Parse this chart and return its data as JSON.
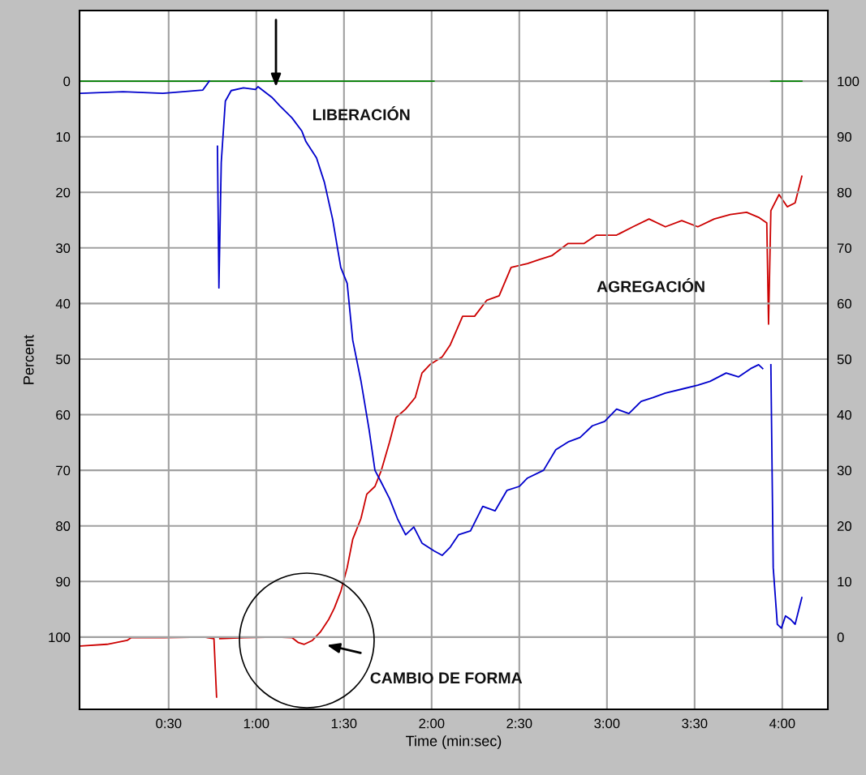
{
  "chart_data": {
    "type": "line",
    "xlabel": "Time (min:sec)",
    "ylabel": "Percent",
    "xlim": [
      -0.5,
      255.6
    ],
    "xticks": [
      {
        "value": 30,
        "label": "0:30"
      },
      {
        "value": 60,
        "label": "1:00"
      },
      {
        "value": 90,
        "label": "1:30"
      },
      {
        "value": 120,
        "label": "2:00"
      },
      {
        "value": 150,
        "label": "2:30"
      },
      {
        "value": 180,
        "label": "3:00"
      },
      {
        "value": 210,
        "label": "3:30"
      },
      {
        "value": 240,
        "label": "4:00"
      }
    ],
    "ylim": [
      113,
      -12.7
    ],
    "yticks": [
      0,
      10,
      20,
      30,
      40,
      50,
      60,
      70,
      80,
      90,
      100
    ],
    "y2lim": [
      -13,
      112.7
    ],
    "y2ticks": [
      0,
      10,
      20,
      30,
      40,
      50,
      60,
      70,
      80,
      90,
      100
    ],
    "grid": true,
    "series": [
      {
        "color": "#008000",
        "x": [
          0,
          120.8,
          121,
          236.1,
          246.7
        ],
        "values": [
          0,
          0,
          null,
          0,
          0
        ]
      },
      {
        "color": "#0000cc",
        "x": [
          0,
          14.4,
          28,
          41.7,
          43.9,
          45,
          46.1,
          46.7,
          47.2,
          48,
          49.4,
          51.4,
          55.6,
          59.7,
          60.6,
          65.3,
          68,
          72.2,
          75.6,
          77,
          80.6,
          83.3,
          86.1,
          88.9,
          91.1,
          93,
          95.8,
          98.6,
          100.6,
          102.8,
          105.6,
          108.3,
          111.1,
          113.9,
          116.7,
          120.8,
          123.6,
          126.4,
          129.2,
          133.3,
          137.5,
          141.7,
          145.8,
          150,
          152.8,
          158.3,
          162.5,
          166.7,
          170.8,
          175,
          179.2,
          183.3,
          187.5,
          191.7,
          195.8,
          200,
          205.6,
          211.1,
          215.3,
          220.8,
          225,
          229.2,
          231.9,
          233.3,
          233.9,
          235.6,
          236.1,
          236.9,
          238.3,
          239.7,
          241.1,
          243,
          244.4,
          246.7
        ],
        "values": [
          2.2,
          1.9,
          2.2,
          1.6,
          0,
          null,
          null,
          11.7,
          37.2,
          14.6,
          3.6,
          1.7,
          1.2,
          1.5,
          1.0,
          2.9,
          4.4,
          6.6,
          9.0,
          10.9,
          13.8,
          18.2,
          24.8,
          33.5,
          36.4,
          46.6,
          53.9,
          62.7,
          70,
          72.2,
          75.1,
          78.7,
          81.6,
          80.2,
          83.1,
          84.5,
          85.3,
          83.8,
          81.6,
          80.9,
          76.5,
          77.3,
          73.6,
          72.9,
          71.4,
          70,
          66.3,
          64.9,
          64.1,
          62,
          61.2,
          59,
          59.8,
          57.6,
          56.9,
          56.1,
          55.4,
          54.7,
          54,
          52.5,
          53.2,
          51.7,
          51,
          51.7,
          null,
          null,
          51,
          87.5,
          97.7,
          98.4,
          96.2,
          96.9,
          97.7,
          92.9
        ]
      },
      {
        "color": "#cc0000",
        "axis": "y2",
        "x": [
          0,
          8.9,
          15.8,
          17.2,
          28.3,
          42.2,
          45.5,
          46.4,
          46.9,
          47.5,
          55.8,
          66.9,
          72.2,
          74.4,
          76.4,
          79.2,
          81.9,
          84.7,
          86.7,
          88.9,
          91.1,
          93,
          95.8,
          97.8,
          100.6,
          102.8,
          105.6,
          107.8,
          111.1,
          114.4,
          116.7,
          119.4,
          123.6,
          126.4,
          130.6,
          134.7,
          138.9,
          143.1,
          147.2,
          152.8,
          156.9,
          161.1,
          166.7,
          172.2,
          176.4,
          183.3,
          188.9,
          194.4,
          200,
          205.6,
          211.1,
          216.7,
          222.2,
          227.8,
          231.9,
          234.7,
          235.3,
          236.1,
          238.9,
          241.7,
          244.4,
          246.7
        ],
        "values": [
          -1.6,
          -1.3,
          -0.6,
          -0.1,
          -0.1,
          0,
          -0.3,
          -10.8,
          null,
          -0.3,
          -0.1,
          0,
          -0.1,
          -1,
          -1.3,
          -0.6,
          0.9,
          3.1,
          5.2,
          8.2,
          12.5,
          17.6,
          21.3,
          25.7,
          27.1,
          30,
          35.1,
          39.5,
          41,
          43.1,
          47.5,
          49,
          50.4,
          52.6,
          57.7,
          57.7,
          60.6,
          61.4,
          66.5,
          67.2,
          67.9,
          68.6,
          70.8,
          70.8,
          72.3,
          72.3,
          73.8,
          75.2,
          73.8,
          74.9,
          73.8,
          75.2,
          76,
          76.4,
          75.5,
          74.5,
          56.3,
          76.7,
          79.6,
          77.4,
          78.1,
          82.9
        ]
      }
    ],
    "annotations": [
      "LIBERACIÓN",
      "AGREGACIÓN",
      "CAMBIO DE FORMA"
    ]
  }
}
